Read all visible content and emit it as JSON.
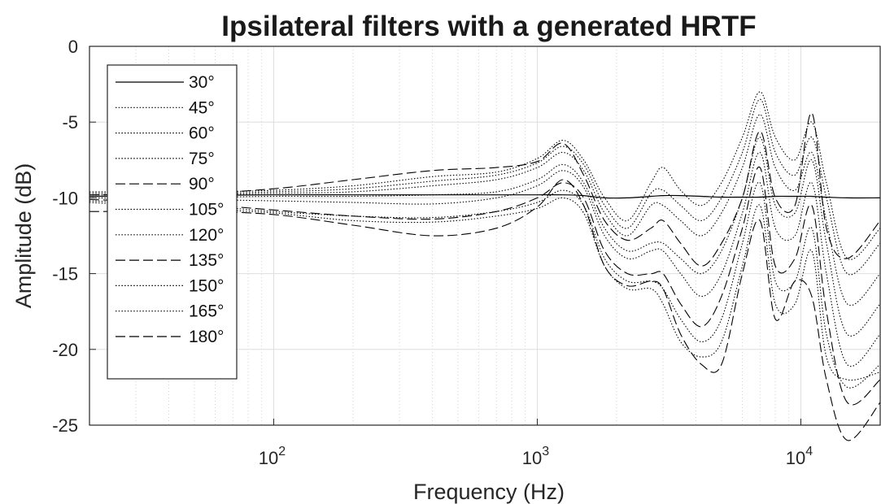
{
  "chart_data": {
    "type": "line",
    "title": "Ipsilateral filters with a generated HRTF",
    "xlabel": "Frequency (Hz)",
    "ylabel": "Amplitude (dB)",
    "xscale": "log",
    "xlim": [
      20,
      20000
    ],
    "ylim": [
      -25,
      0
    ],
    "yticks": [
      0,
      -5,
      -10,
      -15,
      -20,
      -25
    ],
    "ytick_labels": [
      "0",
      "-5",
      "-10",
      "-15",
      "-20",
      "-25"
    ],
    "xticks": [
      {
        "base": "10",
        "exp": "2",
        "value": 100
      },
      {
        "base": "10",
        "exp": "3",
        "value": 1000
      },
      {
        "base": "10",
        "exp": "4",
        "value": 10000
      }
    ],
    "grid": true,
    "legend_position": "top-left",
    "line_color": "#000000",
    "x": [
      20,
      50,
      100,
      200,
      400,
      700,
      1000,
      1250,
      1500,
      1800,
      2200,
      2700,
      3000,
      3500,
      4200,
      5000,
      6000,
      7000,
      8000,
      9500,
      11000,
      12500,
      15000,
      20000
    ],
    "series": [
      {
        "name": "30°",
        "style": "solid",
        "values": [
          -9.9,
          -9.85,
          -9.8,
          -9.8,
          -9.8,
          -9.8,
          -9.8,
          -9.8,
          -9.85,
          -10.0,
          -10.0,
          -9.9,
          -9.85,
          -9.85,
          -9.9,
          -9.95,
          -9.95,
          -9.95,
          -9.9,
          -9.9,
          -9.9,
          -9.95,
          -10.0,
          -10.0
        ]
      },
      {
        "name": "45°",
        "style": "dotted",
        "values": [
          -9.6,
          -9.6,
          -9.5,
          -9.2,
          -8.6,
          -8.3,
          -7.4,
          -6.2,
          -7.5,
          -10.0,
          -11.5,
          -9.0,
          -8.0,
          -9.5,
          -10.5,
          -9.0,
          -6.0,
          -3.0,
          -6.0,
          -7.5,
          -5.0,
          -9.0,
          -14.0,
          -12.0
        ]
      },
      {
        "name": "60°",
        "style": "dotted",
        "values": [
          -9.7,
          -9.7,
          -9.6,
          -9.4,
          -8.9,
          -8.5,
          -7.7,
          -6.6,
          -7.8,
          -10.5,
          -12.0,
          -9.7,
          -9.5,
          -10.5,
          -11.5,
          -10.0,
          -7.0,
          -3.5,
          -7.0,
          -8.5,
          -6.0,
          -10.0,
          -15.0,
          -13.0
        ]
      },
      {
        "name": "75°",
        "style": "dotted",
        "values": [
          -9.8,
          -9.8,
          -9.7,
          -9.6,
          -9.2,
          -8.8,
          -8.0,
          -7.0,
          -8.2,
          -11.0,
          -12.5,
          -10.5,
          -10.5,
          -11.5,
          -12.5,
          -11.0,
          -8.0,
          -4.5,
          -8.0,
          -9.5,
          -7.0,
          -11.5,
          -17.0,
          -15.0
        ]
      },
      {
        "name": "90°",
        "style": "dashed",
        "values": [
          -9.8,
          -9.7,
          -9.4,
          -8.8,
          -8.2,
          -8.0,
          -7.6,
          -6.4,
          -8.5,
          -11.5,
          -12.8,
          -12.0,
          -11.5,
          -13.0,
          -14.5,
          -13.0,
          -10.0,
          -5.6,
          -10.0,
          -10.5,
          -4.4,
          -12.0,
          -14.0,
          -11.5
        ]
      },
      {
        "name": "105°",
        "style": "dotted",
        "values": [
          -9.9,
          -9.95,
          -9.9,
          -9.9,
          -9.8,
          -9.6,
          -8.8,
          -7.8,
          -9.0,
          -12.0,
          -13.5,
          -13.0,
          -13.0,
          -14.0,
          -15.0,
          -13.5,
          -10.0,
          -6.0,
          -10.5,
          -11.0,
          -7.5,
          -13.0,
          -19.0,
          -17.0
        ]
      },
      {
        "name": "120°",
        "style": "dotted",
        "values": [
          -10.0,
          -10.1,
          -10.2,
          -10.3,
          -10.4,
          -10.0,
          -9.2,
          -8.2,
          -9.3,
          -12.5,
          -14.0,
          -13.5,
          -13.5,
          -15.0,
          -16.5,
          -15.0,
          -11.0,
          -7.0,
          -12.0,
          -12.5,
          -9.0,
          -15.0,
          -21.0,
          -19.0
        ]
      },
      {
        "name": "135°",
        "style": "dashed",
        "values": [
          -10.1,
          -10.4,
          -10.8,
          -11.2,
          -11.4,
          -10.9,
          -10.0,
          -9.0,
          -10.0,
          -13.5,
          -15.0,
          -15.0,
          -15.0,
          -17.0,
          -18.5,
          -16.5,
          -12.0,
          -8.0,
          -14.5,
          -14.0,
          -10.5,
          -17.5,
          -23.5,
          -22.0
        ]
      },
      {
        "name": "150°",
        "style": "dotted",
        "values": [
          -10.2,
          -10.5,
          -10.9,
          -11.2,
          -11.3,
          -10.9,
          -10.3,
          -9.5,
          -10.5,
          -14.0,
          -15.5,
          -15.5,
          -16.0,
          -18.0,
          -19.5,
          -18.0,
          -13.0,
          -9.0,
          -15.5,
          -15.5,
          -12.0,
          -19.0,
          -22.5,
          -21.0
        ]
      },
      {
        "name": "165°",
        "style": "dotted",
        "values": [
          -10.3,
          -10.7,
          -11.0,
          -11.5,
          -11.6,
          -11.2,
          -10.7,
          -10.0,
          -11.0,
          -14.5,
          -16.0,
          -16.0,
          -17.0,
          -19.5,
          -20.5,
          -19.5,
          -14.5,
          -10.5,
          -17.0,
          -17.0,
          -13.5,
          -20.5,
          -22.0,
          -21.5
        ]
      },
      {
        "name": "180°",
        "style": "dashed",
        "values": [
          -10.9,
          -10.9,
          -11.1,
          -11.8,
          -12.5,
          -12.0,
          -10.6,
          -8.8,
          -10.5,
          -14.5,
          -15.8,
          -15.5,
          -16.0,
          -19.0,
          -21.0,
          -21.0,
          -15.0,
          -11.5,
          -18.0,
          -15.5,
          -16.5,
          -22.0,
          -26.0,
          -23.5
        ]
      }
    ]
  }
}
